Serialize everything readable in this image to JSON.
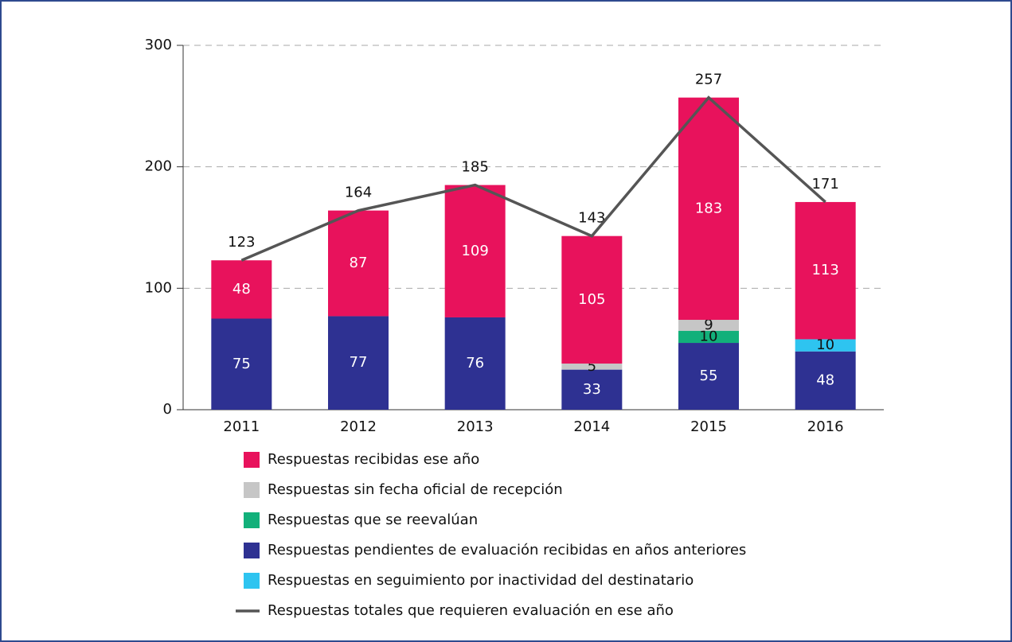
{
  "chart_data": {
    "type": "bar",
    "stacked": true,
    "categories": [
      "2011",
      "2012",
      "2013",
      "2014",
      "2015",
      "2016"
    ],
    "series": [
      {
        "name": "Respuestas recibidas ese año",
        "color": "#e8125c",
        "values": [
          48,
          87,
          109,
          105,
          183,
          113
        ]
      },
      {
        "name": "Respuestas sin fecha oficial de recepción",
        "color": "#c6c6c6",
        "values": [
          null,
          null,
          null,
          5,
          9,
          null
        ]
      },
      {
        "name": "Respuestas que se reevalúan",
        "color": "#12b07a",
        "values": [
          null,
          null,
          null,
          null,
          10,
          null
        ]
      },
      {
        "name": "Respuestas pendientes de evaluación recibidas en años anteriores",
        "color": "#2e3192",
        "values": [
          75,
          77,
          76,
          33,
          55,
          48
        ]
      },
      {
        "name": "Respuestas en seguimiento por inactividad del destinatario",
        "color": "#2ec4f0",
        "values": [
          null,
          null,
          null,
          null,
          null,
          10
        ]
      },
      {
        "name": "Respuestas totales que requieren evaluación en ese año",
        "color": "#555555",
        "type": "line",
        "values": [
          123,
          164,
          185,
          143,
          257,
          171
        ]
      }
    ],
    "ylim": [
      0,
      300
    ],
    "yticks": [
      0,
      100,
      200,
      300
    ],
    "grid": true
  }
}
